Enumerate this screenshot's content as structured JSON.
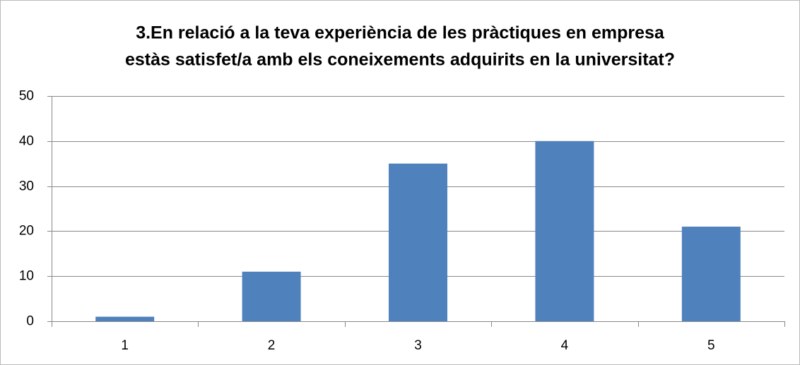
{
  "chart_data": {
    "type": "bar",
    "title": [
      "3.En relació a la teva experiència  de les pràctiques en empresa",
      "estàs satisfet/a amb els coneixements adquirits en la universitat?"
    ],
    "categories": [
      "1",
      "2",
      "3",
      "4",
      "5"
    ],
    "values": [
      1,
      11,
      35,
      40,
      21
    ],
    "color": "#4f81bd",
    "ylim": [
      0,
      50
    ],
    "yticks": [
      0,
      10,
      20,
      30,
      40,
      50
    ],
    "grid": true
  }
}
